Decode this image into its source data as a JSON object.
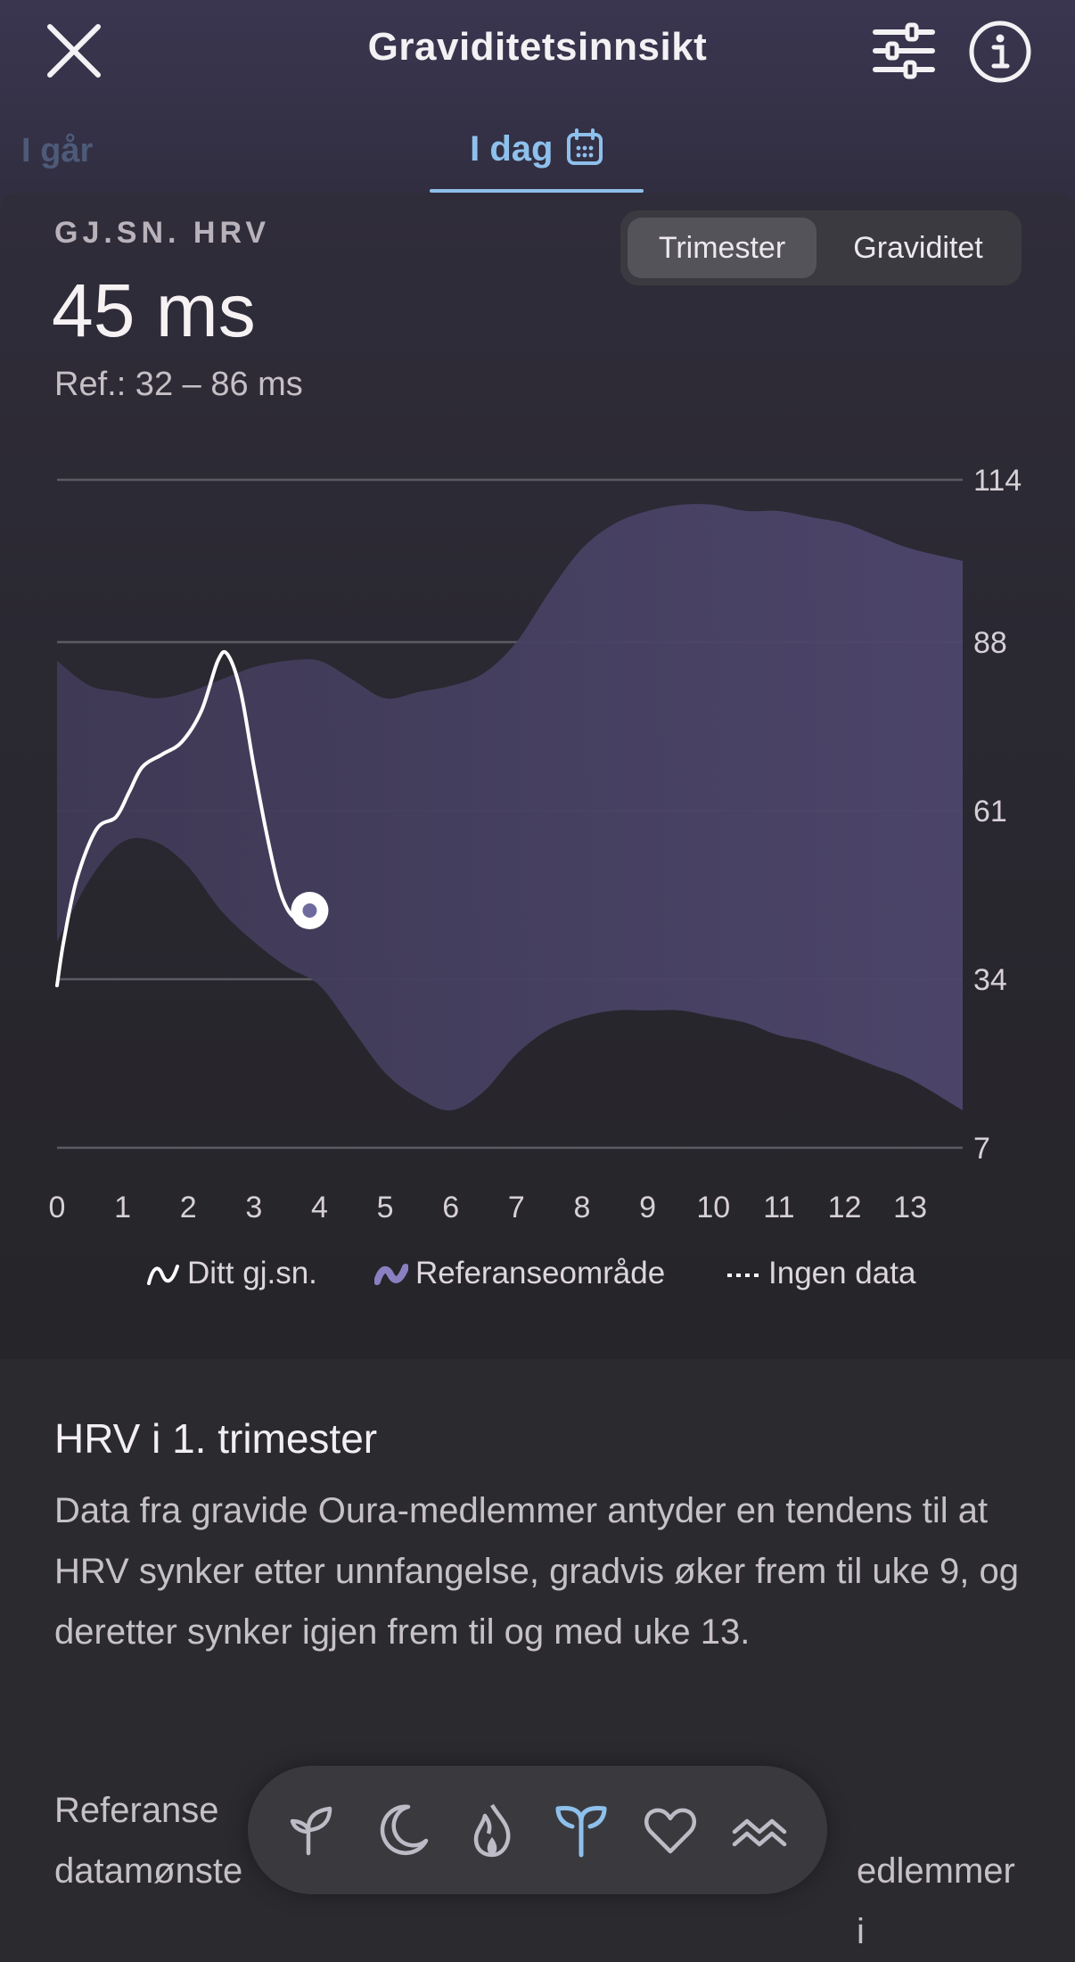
{
  "header": {
    "title": "Graviditetsinnsikt",
    "close_icon": "close-icon",
    "filter_icon": "sliders-icon",
    "info_icon": "info-icon"
  },
  "tabs": {
    "yesterday": "I går",
    "today": "I dag",
    "today_icon": "calendar-icon"
  },
  "metric": {
    "label": "GJ.SN. HRV",
    "value": "45 ms",
    "reference": "Ref.: 32 – 86 ms"
  },
  "segment": {
    "options": [
      "Trimester",
      "Graviditet"
    ],
    "selected": "Trimester"
  },
  "chart_data": {
    "type": "area",
    "y_ticks": [
      "114",
      "88",
      "61",
      "34",
      "7"
    ],
    "x_ticks": [
      "0",
      "1",
      "2",
      "3",
      "4",
      "5",
      "6",
      "7",
      "8",
      "9",
      "10",
      "11",
      "12",
      "13"
    ],
    "ylim": [
      7,
      114
    ],
    "xlim": [
      0,
      13.8
    ],
    "grid": true,
    "series": [
      {
        "name": "Ditt gj.sn.",
        "x": [
          0,
          0.1,
          0.3,
          0.6,
          0.9,
          1.1,
          1.3,
          1.6,
          1.9,
          2.2,
          2.45,
          2.6,
          2.8,
          3.0,
          3.2,
          3.4,
          3.6,
          3.75
        ],
        "values": [
          33,
          40,
          50,
          58,
          60,
          64,
          68,
          70,
          72,
          77,
          85,
          86,
          80,
          68,
          57,
          48,
          44,
          45
        ]
      },
      {
        "name": "Referanseområde",
        "x": [
          0,
          0.5,
          1,
          1.5,
          2,
          2.5,
          3,
          3.5,
          4,
          4.5,
          5,
          5.5,
          6,
          6.5,
          7,
          7.5,
          8,
          8.5,
          9,
          9.5,
          10,
          10.5,
          11,
          11.5,
          12,
          12.5,
          13,
          13.8
        ],
        "upper": [
          85,
          81,
          80,
          79,
          80,
          82,
          84,
          85,
          85,
          82,
          79,
          80,
          81,
          83,
          88,
          96,
          103,
          107,
          109,
          110,
          110,
          109,
          109,
          108,
          107,
          105,
          103,
          101
        ],
        "lower": [
          40,
          50,
          56,
          56,
          52,
          45,
          40,
          36,
          33,
          26,
          19,
          15,
          13,
          16,
          22,
          26,
          28,
          29,
          29,
          29,
          28,
          27,
          25,
          24,
          22,
          20,
          18,
          13
        ]
      }
    ],
    "current_point": {
      "x": 3.85,
      "y": 45
    }
  },
  "legend": {
    "items": [
      "Ditt gj.sn.",
      "Referanseområde",
      "Ingen data"
    ]
  },
  "section": {
    "title": "HRV i 1. trimester",
    "body": "Data fra gravide Oura-medlemmer antyder en tendens til at HRV synker etter unnfangelse, gradvis øker frem til uke 9, og deretter synker igjen frem til og med uke 13.",
    "body2_line1_start": "Referanse",
    "body2_line2_start": "datamønste",
    "body2_line2_end": "edlemmer i"
  },
  "bottom_nav": {
    "icons": [
      "sprout-icon",
      "moon-icon",
      "flame-icon",
      "pregnancy-icon",
      "heart-icon",
      "waves-icon"
    ],
    "active": "pregnancy-icon",
    "active_color": "#8ec0ec"
  }
}
